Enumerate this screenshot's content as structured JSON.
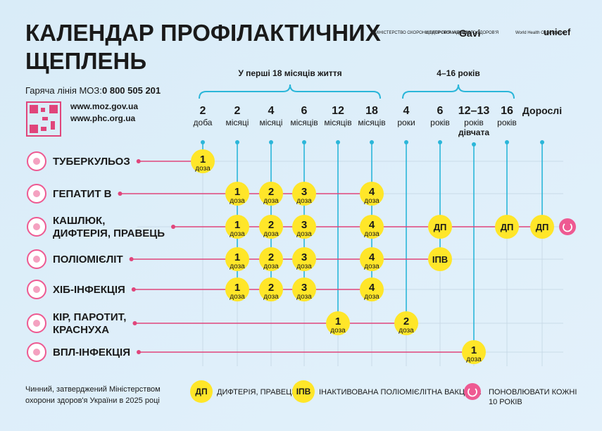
{
  "header": {
    "title": [
      "КАЛЕНДАР ПРОФІЛАКТИЧНИХ",
      "ЩЕПЛЕНЬ"
    ],
    "logos": [
      "МІНІСТЕРСТВО ОХОРОНИ ЗДОРОВ'Я УКРАЇНИ",
      "ЦЕНТР ГРОМАДСЬКОГО ЗДОРОВ'Я",
      "Gavi",
      "World Health Organization",
      "unicef"
    ]
  },
  "hotline": {
    "label": "Гаряча лінія МОЗ:",
    "number": "0 800 505 201"
  },
  "links": [
    "www.moz.gov.ua",
    "www.phc.org.ua"
  ],
  "age_groups": [
    "У перші 18 місяців життя",
    "4–16 років"
  ],
  "columns": [
    {
      "number": "2",
      "unit": "доба"
    },
    {
      "number": "2",
      "unit": "місяці"
    },
    {
      "number": "4",
      "unit": "місяці"
    },
    {
      "number": "6",
      "unit": "місяців"
    },
    {
      "number": "12",
      "unit": "місяців"
    },
    {
      "number": "18",
      "unit": "місяців"
    },
    {
      "number": "4",
      "unit": "роки"
    },
    {
      "number": "6",
      "unit": "років"
    },
    {
      "number": "12–13",
      "unit": "років",
      "note": "дівчата"
    },
    {
      "number": "16",
      "unit": "років"
    },
    {
      "number": "Дорослі"
    }
  ],
  "rows": [
    {
      "name": [
        "ТУБЕРКУЛЬОЗ"
      ],
      "doses": [
        {
          "n": "1",
          "unit": "доза"
        },
        null,
        null,
        null,
        null,
        null,
        null,
        null,
        null,
        null,
        null
      ]
    },
    {
      "name": [
        "ГЕПАТИТ B"
      ],
      "doses": [
        null,
        {
          "n": "1",
          "unit": "доза"
        },
        {
          "n": "2",
          "unit": "доза"
        },
        {
          "n": "3",
          "unit": "доза"
        },
        null,
        {
          "n": "4",
          "unit": "доза"
        },
        null,
        null,
        null,
        null,
        null
      ]
    },
    {
      "name": [
        "КАШЛЮК,",
        "ДИФТЕРІЯ, ПРАВЕЦЬ"
      ],
      "doses": [
        null,
        {
          "n": "1",
          "unit": "доза"
        },
        {
          "n": "2",
          "unit": "доза"
        },
        {
          "n": "3",
          "unit": "доза"
        },
        null,
        {
          "n": "4",
          "unit": "доза"
        },
        null,
        {
          "n": "ДП"
        },
        null,
        {
          "n": "ДП"
        },
        {
          "n": "ДП"
        }
      ]
    },
    {
      "name": [
        "ПОЛІОМІЄЛІТ"
      ],
      "doses": [
        null,
        {
          "n": "1",
          "unit": "доза"
        },
        {
          "n": "2",
          "unit": "доза"
        },
        {
          "n": "3",
          "unit": "доза"
        },
        null,
        {
          "n": "4",
          "unit": "доза"
        },
        null,
        {
          "n": "ІПВ"
        },
        null,
        null,
        null
      ]
    },
    {
      "name": [
        "ХІБ-ІНФЕКЦІЯ"
      ],
      "doses": [
        null,
        {
          "n": "1",
          "unit": "доза"
        },
        {
          "n": "2",
          "unit": "доза"
        },
        {
          "n": "3",
          "unit": "доза"
        },
        null,
        {
          "n": "4",
          "unit": "доза"
        },
        null,
        null,
        null,
        null,
        null
      ]
    },
    {
      "name": [
        "КІР, ПАРОТИТ,",
        "КРАСНУХА"
      ],
      "doses": [
        null,
        null,
        null,
        null,
        {
          "n": "1",
          "unit": "доза"
        },
        null,
        {
          "n": "2",
          "unit": "доза"
        },
        null,
        null,
        null,
        null
      ]
    },
    {
      "name": [
        "ВПЛ-ІНФЕКЦІЯ"
      ],
      "doses": [
        null,
        null,
        null,
        null,
        null,
        null,
        null,
        null,
        {
          "n": "1",
          "unit": "доза"
        },
        null,
        null
      ]
    }
  ],
  "legend": [
    {
      "badge": "ДП",
      "text": [
        "ДИФТЕРІЯ, ПРАВЕЦЬ"
      ]
    },
    {
      "badge": "ІПВ",
      "text": [
        "ІНАКТИВОВАНА ПОЛІОМІЄЛІТНА ВАКЦИНА"
      ]
    },
    {
      "text": [
        "ПОНОВЛЮВАТИ КОЖНІ",
        "10 РОКІВ"
      ]
    }
  ],
  "footer": [
    "Чинний, затверджений Міністерством",
    "охорони здоров'я України в 2025 році"
  ]
}
